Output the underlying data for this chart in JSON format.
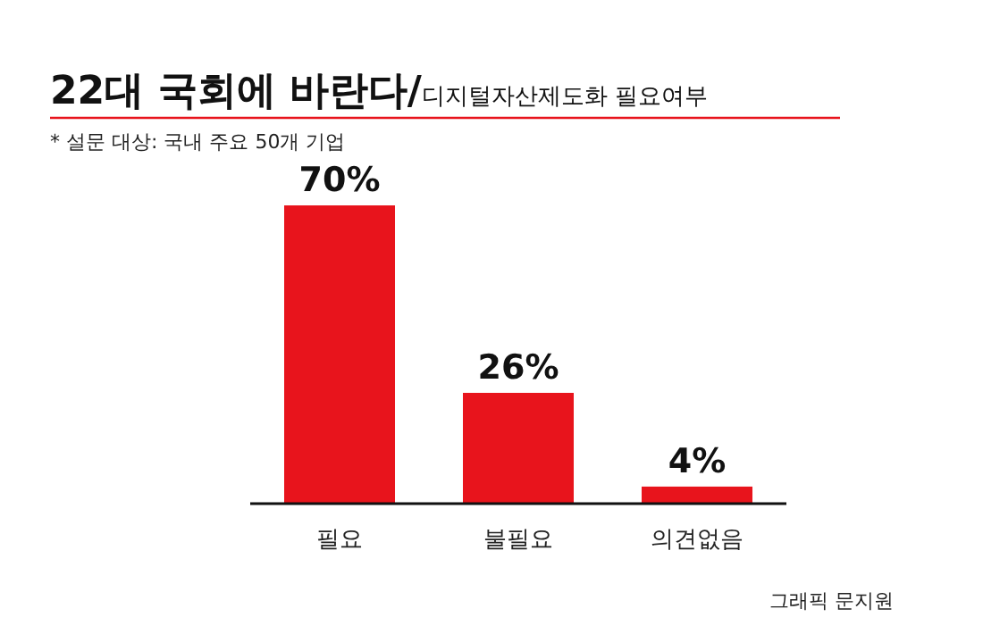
{
  "chart_data": {
    "type": "bar",
    "title": "22대 국회에 바란다/",
    "subtitle": "디지털자산제도화 필요여부",
    "annotations": [
      "* 설문 대상: 국내 주요 50개 기업",
      "그래픽 문지원"
    ],
    "categories": [
      "필요",
      "불필요",
      "의견없음"
    ],
    "values": [
      70,
      26,
      4
    ],
    "value_labels": [
      "70%",
      "26%",
      "4%"
    ],
    "color": "#e8141c",
    "relative": false
  }
}
